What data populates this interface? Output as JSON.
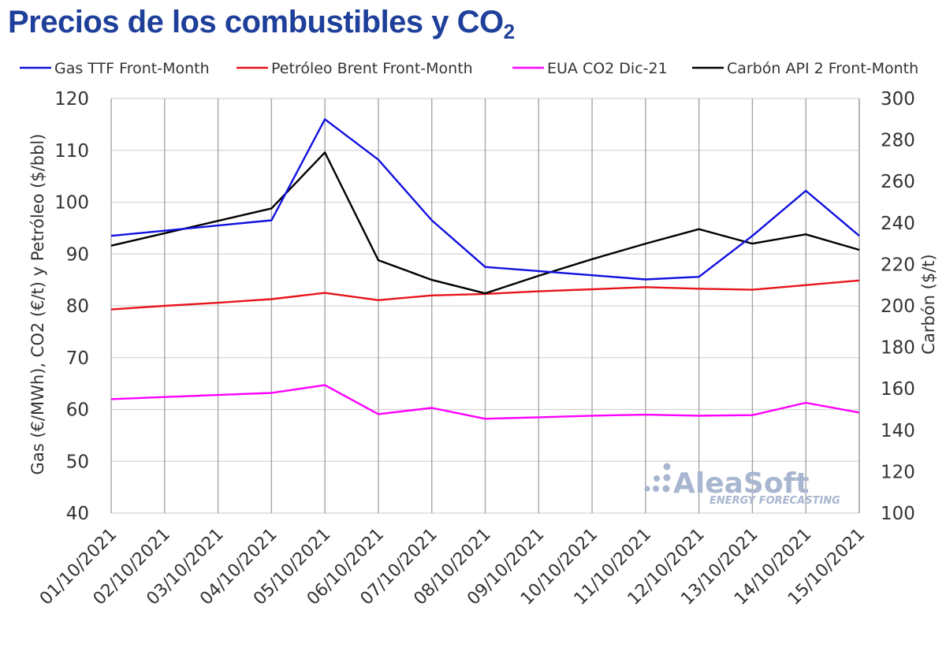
{
  "chart_data": {
    "type": "line",
    "title_main": "Precios de los combustibles y CO",
    "title_sub": "2",
    "ylabel_left": "Gas (€/MWh), CO2 (€/t)  y Petróleo ($/bbl)",
    "ylabel_right": "Carbón ($/t)",
    "ylim_left": [
      40,
      120
    ],
    "ylim_right": [
      100,
      300
    ],
    "yticks_left": [
      40,
      50,
      60,
      70,
      80,
      90,
      100,
      110,
      120
    ],
    "yticks_right": [
      100,
      120,
      140,
      160,
      180,
      200,
      220,
      240,
      260,
      280,
      300
    ],
    "grid": true,
    "legend_position": "top",
    "categories": [
      "01/10/2021",
      "02/10/2021",
      "03/10/2021",
      "04/10/2021",
      "05/10/2021",
      "06/10/2021",
      "07/10/2021",
      "08/10/2021",
      "09/10/2021",
      "10/10/2021",
      "11/10/2021",
      "12/10/2021",
      "13/10/2021",
      "14/10/2021",
      "15/10/2021"
    ],
    "series": [
      {
        "name": "Gas TTF Front-Month",
        "color": "#1010e0",
        "axis": "left",
        "values": [
          93.5,
          94.5,
          95.5,
          96.5,
          116.0,
          108.2,
          96.5,
          87.5,
          86.7,
          85.9,
          85.1,
          85.6,
          93.5,
          102.2,
          93.5
        ]
      },
      {
        "name": "Petróleo Brent Front-Month",
        "color": "#e8141b",
        "axis": "left",
        "values": [
          79.3,
          80.0,
          80.6,
          81.3,
          82.5,
          81.1,
          82.0,
          82.3,
          82.8,
          83.2,
          83.6,
          83.3,
          83.1,
          84.0,
          84.9
        ]
      },
      {
        "name": "EUA CO2 Dic-21",
        "color": "#ff00ff",
        "axis": "left",
        "values": [
          62.0,
          62.4,
          62.8,
          63.2,
          64.7,
          59.1,
          60.3,
          58.2,
          58.5,
          58.8,
          59.0,
          58.8,
          58.9,
          61.3,
          59.4
        ]
      },
      {
        "name": "Carbón API 2 Front-Month",
        "color": "#000000",
        "axis": "right",
        "values": [
          229.0,
          235.0,
          241.0,
          247.0,
          274.0,
          222.0,
          212.5,
          206.0,
          214.5,
          222.5,
          230.0,
          237.0,
          230.0,
          234.5,
          227.0
        ]
      }
    ]
  },
  "watermark": {
    "brand": "AleaSoft",
    "tagline": "ENERGY FORECASTING"
  }
}
